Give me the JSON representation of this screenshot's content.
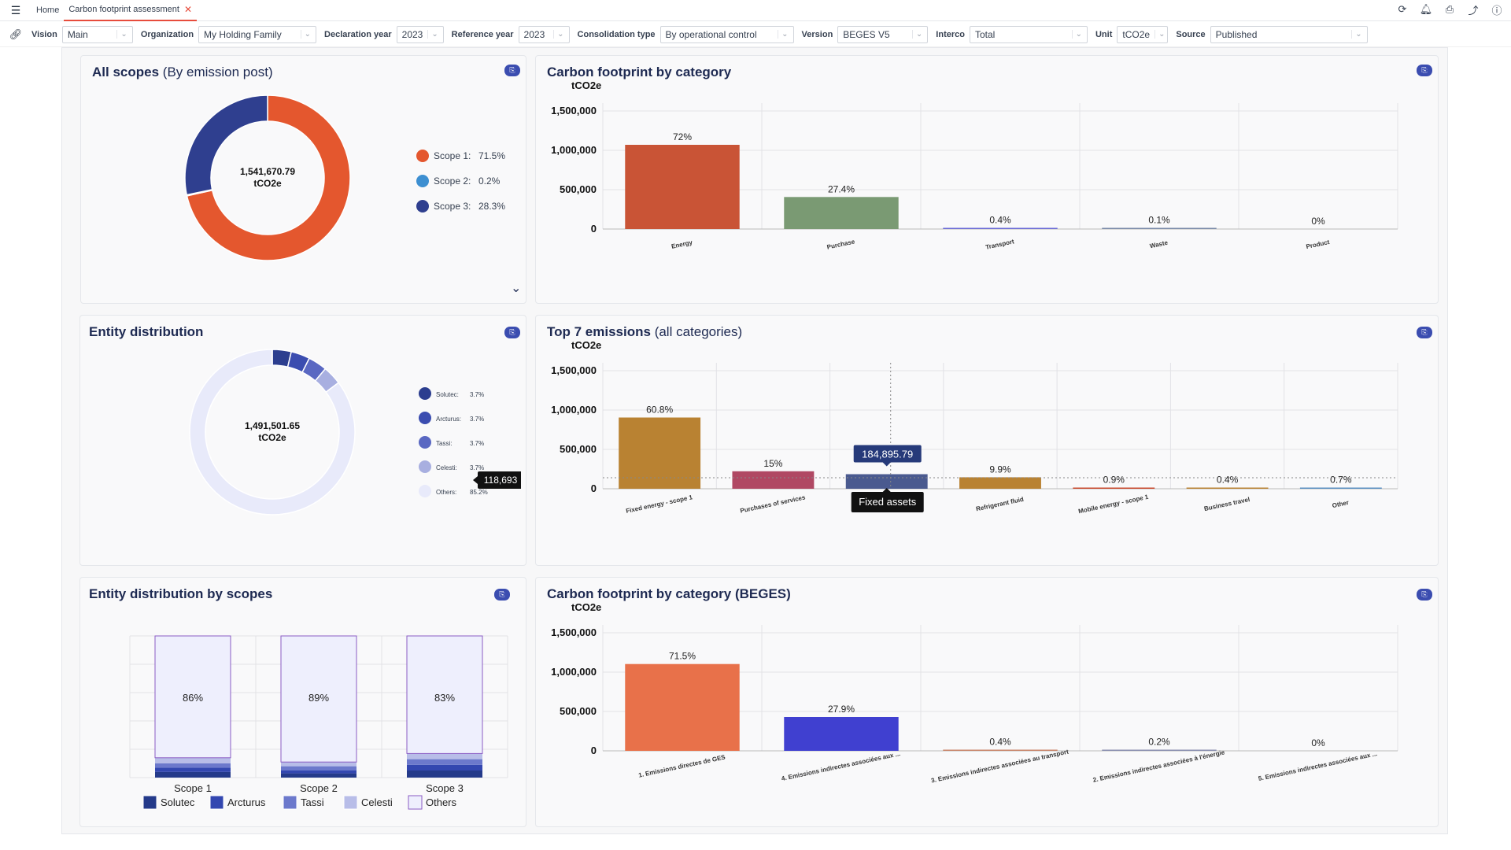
{
  "tabs": {
    "home": "Home",
    "active": "Carbon footprint assessment"
  },
  "filters": [
    {
      "label": "Vision",
      "value": "Main"
    },
    {
      "label": "Organization",
      "value": "My Holding Family"
    },
    {
      "label": "Declaration year",
      "value": "2023"
    },
    {
      "label": "Reference year",
      "value": "2023"
    },
    {
      "label": "Consolidation type",
      "value": "By operational control"
    },
    {
      "label": "Version",
      "value": "BEGES V5"
    },
    {
      "label": "Interco",
      "value": "Total"
    },
    {
      "label": "Unit",
      "value": "tCO2e"
    },
    {
      "label": "Source",
      "value": "Published"
    }
  ],
  "icons": [
    "refresh-icon",
    "bell-icon",
    "print-icon",
    "share-icon",
    "info-icon"
  ],
  "colors": {
    "scope1": "#e4572e",
    "scope2": "#3d8fd1",
    "scope3": "#2f3f8f",
    "energy": "#c95436",
    "purchase": "#7a9a73"
  },
  "cards": {
    "all_scopes": {
      "title": "All scopes",
      "subtitle": "(By emission post)",
      "center_value": "1,541,670.79",
      "center_unit": "tCO2e"
    },
    "cf_category": {
      "title": "Carbon footprint by category"
    },
    "entity": {
      "title": "Entity distribution",
      "center_value": "1,491,501.65",
      "center_unit": "tCO2e",
      "tooltip": "118,693"
    },
    "top7": {
      "title": "Top 7 emissions",
      "subtitle": "(all categories)",
      "tooltip_value": "184,895.79",
      "tooltip_label": "Fixed assets"
    },
    "entity_scopes": {
      "title": "Entity distribution by scopes"
    },
    "beges": {
      "title": "Carbon footprint by category (BEGES)"
    }
  },
  "chart_data": [
    {
      "type": "pie",
      "name": "all_scopes",
      "categories": [
        "Scope 1",
        "Scope 2",
        "Scope 3"
      ],
      "values": [
        71.5,
        0.2,
        28.3
      ],
      "labels": [
        "Scope 1:",
        "Scope 2:",
        "Scope 3:"
      ],
      "display": [
        "71.5%",
        "0.2%",
        "28.3%"
      ],
      "colors": [
        "#e4572e",
        "#3d8fd1",
        "#2f3f8f"
      ]
    },
    {
      "type": "bar",
      "name": "cf_category",
      "ylabel": "tCO2e",
      "categories": [
        "Energy",
        "Purchase",
        "Transport",
        "Waste",
        "Product"
      ],
      "values": [
        1070000,
        407000,
        5500,
        1500,
        0
      ],
      "labels": [
        "72%",
        "27.4%",
        "0.4%",
        "0.1%",
        "0%"
      ],
      "ylim": [
        0,
        1500000
      ],
      "ticks": [
        "0",
        "500,000",
        "1,000,000",
        "1,500,000"
      ],
      "colors": [
        "#c95436",
        "#7a9a73",
        "#6b6bd6",
        "#7a8ba8",
        "#999999"
      ]
    },
    {
      "type": "pie",
      "name": "entity",
      "categories": [
        "Solutec",
        "Arcturus",
        "Tassi",
        "Celesti",
        "Others"
      ],
      "labels": [
        "Solutec:",
        "Arcturus:",
        "Tassi:",
        "Celesti:",
        "Others:"
      ],
      "values": [
        3.7,
        3.7,
        3.7,
        3.7,
        85.2
      ],
      "display": [
        "3.7%",
        "3.7%",
        "3.7%",
        "3.7%",
        "85.2%"
      ],
      "colors": [
        "#2c3e8f",
        "#3b4db0",
        "#5a68c2",
        "#a8afe0",
        "#e8eafa"
      ]
    },
    {
      "type": "bar",
      "name": "top7",
      "ylabel": "tCO2e",
      "categories": [
        "Fixed energy - scope 1",
        "Purchases of services",
        "Fixed assets",
        "Refrigerant fluid",
        "Mobile energy - scope 1",
        "Business travel",
        "Other"
      ],
      "values": [
        905000,
        222000,
        184895.79,
        146000,
        13000,
        6000,
        10000
      ],
      "labels": [
        "60.8%",
        "15%",
        "",
        "9.9%",
        "0.9%",
        "0.4%",
        "0.7%"
      ],
      "ylim": [
        0,
        1500000
      ],
      "ticks": [
        "0",
        "500,000",
        "1,000,000",
        "1,500,000"
      ],
      "colors": [
        "#b98232",
        "#b04863",
        "#4a5a8f",
        "#b98232",
        "#c9492c",
        "#b98232",
        "#5a8fc1"
      ]
    },
    {
      "type": "bar",
      "name": "entity_scopes",
      "stacked": true,
      "categories": [
        "Scope 1",
        "Scope 2",
        "Scope 3"
      ],
      "series": [
        {
          "name": "Solutec",
          "values": [
            4,
            3,
            5
          ]
        },
        {
          "name": "Arcturus",
          "values": [
            3,
            2,
            4
          ]
        },
        {
          "name": "Tassi",
          "values": [
            3,
            3,
            4
          ]
        },
        {
          "name": "Celesti",
          "values": [
            4,
            3,
            4
          ]
        },
        {
          "name": "Others",
          "values": [
            86,
            89,
            83
          ]
        }
      ],
      "labels": [
        "86%",
        "89%",
        "83%"
      ],
      "colors": [
        "#243a8a",
        "#3347b0",
        "#6c79cc",
        "#b8bde8",
        "#eeeffd"
      ]
    },
    {
      "type": "bar",
      "name": "beges",
      "ylabel": "tCO2e",
      "categories": [
        "1. Emissions directes de GES",
        "4. Emissions indirectes associées aux ...",
        "3. Emissions indirectes associées au transport",
        "2. Emissions indirectes associées à l'énergie",
        "5. Emissions indirectes associées aux ..."
      ],
      "values": [
        1103000,
        430000,
        5500,
        3000,
        0
      ],
      "labels": [
        "71.5%",
        "27.9%",
        "0.4%",
        "0.2%",
        "0%"
      ],
      "ylim": [
        0,
        1500000
      ],
      "ticks": [
        "0",
        "500,000",
        "1,000,000",
        "1,500,000"
      ],
      "colors": [
        "#e8714a",
        "#4040d0",
        "#c9856a",
        "#8a8fb0",
        "#999999"
      ]
    }
  ]
}
